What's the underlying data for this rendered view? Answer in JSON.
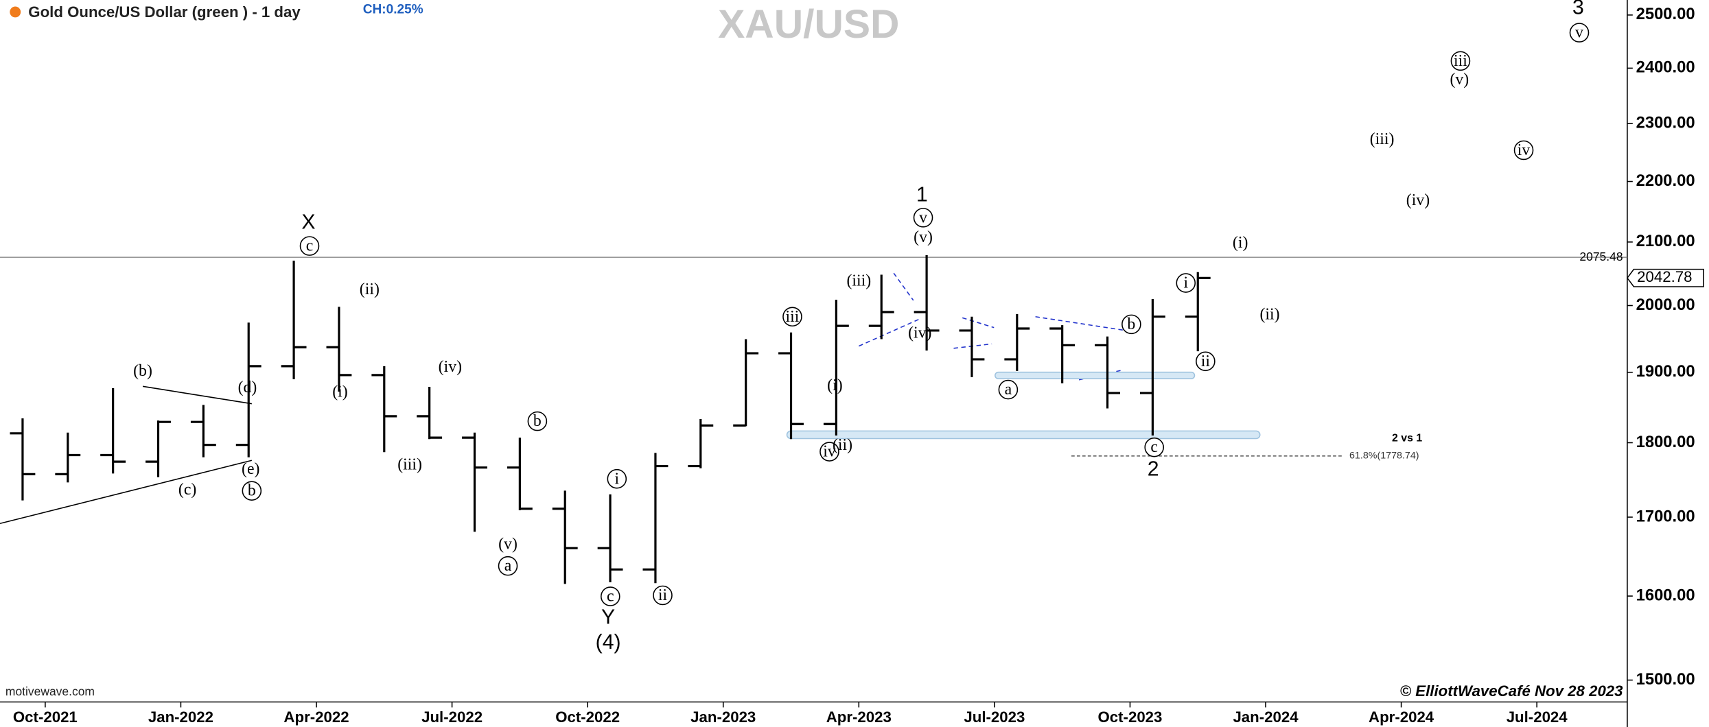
{
  "chart_data": {
    "type": "ohlc",
    "title": "Gold Ounce/US Dollar (green ) - 1 day",
    "change": "CH:0.25%",
    "symbol": "XAU/USD",
    "source": "motivewave.com",
    "credit": "© ElliottWaveCafé Nov 28 2023",
    "x": [
      "2021-09",
      "2021-10",
      "2021-11",
      "2021-12",
      "2022-01",
      "2022-02",
      "2022-03",
      "2022-04",
      "2022-05",
      "2022-06",
      "2022-07",
      "2022-08",
      "2022-09",
      "2022-10",
      "2022-11",
      "2022-12",
      "2023-01",
      "2023-02",
      "2023-03",
      "2023-04",
      "2023-05",
      "2023-06",
      "2023-07",
      "2023-08",
      "2023-09",
      "2023-10",
      "2023-11"
    ],
    "open": [
      1813,
      1757,
      1783,
      1774,
      1829,
      1797,
      1909,
      1937,
      1896,
      1837,
      1807,
      1766,
      1711,
      1660,
      1633,
      1768,
      1824,
      1928,
      1826,
      1969,
      1990,
      1962,
      1919,
      1965,
      1940,
      1870,
      1983
    ],
    "high": [
      1834,
      1814,
      1877,
      1831,
      1853,
      1974,
      2070,
      1998,
      1909,
      1879,
      1814,
      1807,
      1735,
      1730,
      1786,
      1833,
      1949,
      1959,
      2009,
      2048,
      2079,
      1983,
      1987,
      1970,
      1953,
      2010,
      2052
    ],
    "low": [
      1722,
      1746,
      1758,
      1753,
      1780,
      1780,
      1890,
      1872,
      1787,
      1805,
      1681,
      1709,
      1615,
      1617,
      1616,
      1765,
      1823,
      1805,
      1810,
      1949,
      1932,
      1893,
      1902,
      1884,
      1848,
      1810,
      1931
    ],
    "close": [
      1757,
      1783,
      1774,
      1829,
      1797,
      1909,
      1937,
      1896,
      1837,
      1807,
      1766,
      1711,
      1660,
      1633,
      1768,
      1824,
      1928,
      1826,
      1969,
      1990,
      1962,
      1919,
      1965,
      1940,
      1870,
      1983,
      2042.78
    ],
    "color": "#000000",
    "log": true,
    "xlim": [
      "2021-09",
      "2024-09"
    ],
    "xticks": [
      {
        "value": "2021-10",
        "label": "Oct-2021"
      },
      {
        "value": "2022-01",
        "label": "Jan-2022"
      },
      {
        "value": "2022-04",
        "label": "Apr-2022"
      },
      {
        "value": "2022-07",
        "label": "Jul-2022"
      },
      {
        "value": "2022-10",
        "label": "Oct-2022"
      },
      {
        "value": "2023-01",
        "label": "Jan-2023"
      },
      {
        "value": "2023-04",
        "label": "Apr-2023"
      },
      {
        "value": "2023-07",
        "label": "Jul-2023"
      },
      {
        "value": "2023-10",
        "label": "Oct-2023"
      },
      {
        "value": "2024-01",
        "label": "Jan-2024"
      },
      {
        "value": "2024-04",
        "label": "Apr-2024"
      },
      {
        "value": "2024-07",
        "label": "Jul-2024"
      }
    ],
    "ylim": [
      1475,
      2529
    ],
    "yticks": [
      {
        "value": 1500,
        "label": "1500.00"
      },
      {
        "value": 1600,
        "label": "1600.00"
      },
      {
        "value": 1700,
        "label": "1700.00"
      },
      {
        "value": 1800,
        "label": "1800.00"
      },
      {
        "value": 1900,
        "label": "1900.00"
      },
      {
        "value": 2000,
        "label": "2000.00"
      },
      {
        "value": 2100,
        "label": "2100.00"
      },
      {
        "value": 2200,
        "label": "2200.00"
      },
      {
        "value": 2300,
        "label": "2300.00"
      },
      {
        "value": 2400,
        "label": "2400.00"
      },
      {
        "value": 2500,
        "label": "2500.00"
      }
    ],
    "reference_line": 2075.48,
    "annotations": [
      "(b)",
      "(d)",
      "(c)",
      "(e)",
      "b",
      "X",
      "c",
      "(ii)",
      "(i)",
      "(iv)",
      "(iii)",
      "b",
      "(v)",
      "a",
      "i",
      "c",
      "Y",
      "(4)",
      "ii",
      "iii",
      "(iii)",
      "(i)",
      "iv",
      "(ii)",
      "1",
      "v",
      "(v)",
      "(iv)",
      "a",
      "b",
      "c",
      "2",
      "i",
      "ii",
      "(i)",
      "(ii)",
      "(iii)",
      "(iv)",
      "iii",
      "(v)",
      "iv",
      "3",
      "v",
      "2 vs 1",
      "61.8%(1778.74)"
    ]
  }
}
